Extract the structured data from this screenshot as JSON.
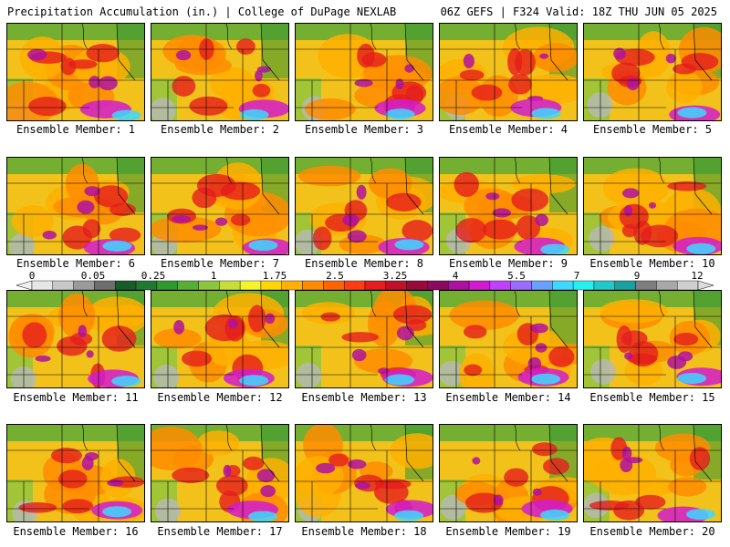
{
  "header": {
    "left": "Precipitation Accumulation (in.) | College of DuPage NEXLAB",
    "right": "06Z GEFS | F324 Valid: 18Z THU JUN 05 2025"
  },
  "colorbar": {
    "labels": [
      "0",
      "0.05",
      "0.25",
      "1",
      "1.75",
      "2.5",
      "3.25",
      "4",
      "5.5",
      "7",
      "9",
      "12"
    ],
    "colors": [
      "#e6e6e6",
      "#c8c8c8",
      "#9a9a9a",
      "#6e6e6e",
      "#175d2c",
      "#1f7a30",
      "#2e9a2e",
      "#54b035",
      "#8cc63f",
      "#c5de3a",
      "#f4f428",
      "#ffd400",
      "#ffb000",
      "#ff8c00",
      "#ff6400",
      "#ff3c14",
      "#e51d1d",
      "#c0102a",
      "#9a0a3a",
      "#8a0a60",
      "#b010a0",
      "#d21bd0",
      "#c040ff",
      "#9a6cff",
      "#6aa0ff",
      "#3cd8ff",
      "#24f0f0",
      "#20c8c8",
      "#1aa0a0",
      "#7e7e7e",
      "#a8a8a8",
      "#cfcfcf"
    ]
  },
  "members": [
    {
      "label": "Ensemble Member: 1"
    },
    {
      "label": "Ensemble Member: 2"
    },
    {
      "label": "Ensemble Member: 3"
    },
    {
      "label": "Ensemble Member: 4"
    },
    {
      "label": "Ensemble Member: 5"
    },
    {
      "label": "Ensemble Member: 6"
    },
    {
      "label": "Ensemble Member: 7"
    },
    {
      "label": "Ensemble Member: 8"
    },
    {
      "label": "Ensemble Member: 9"
    },
    {
      "label": "Ensemble Member: 10"
    },
    {
      "label": "Ensemble Member: 11"
    },
    {
      "label": "Ensemble Member: 12"
    },
    {
      "label": "Ensemble Member: 13"
    },
    {
      "label": "Ensemble Member: 14"
    },
    {
      "label": "Ensemble Member: 15"
    },
    {
      "label": "Ensemble Member: 16"
    },
    {
      "label": "Ensemble Member: 17"
    },
    {
      "label": "Ensemble Member: 18"
    },
    {
      "label": "Ensemble Member: 19"
    },
    {
      "label": "Ensemble Member: 20"
    }
  ]
}
